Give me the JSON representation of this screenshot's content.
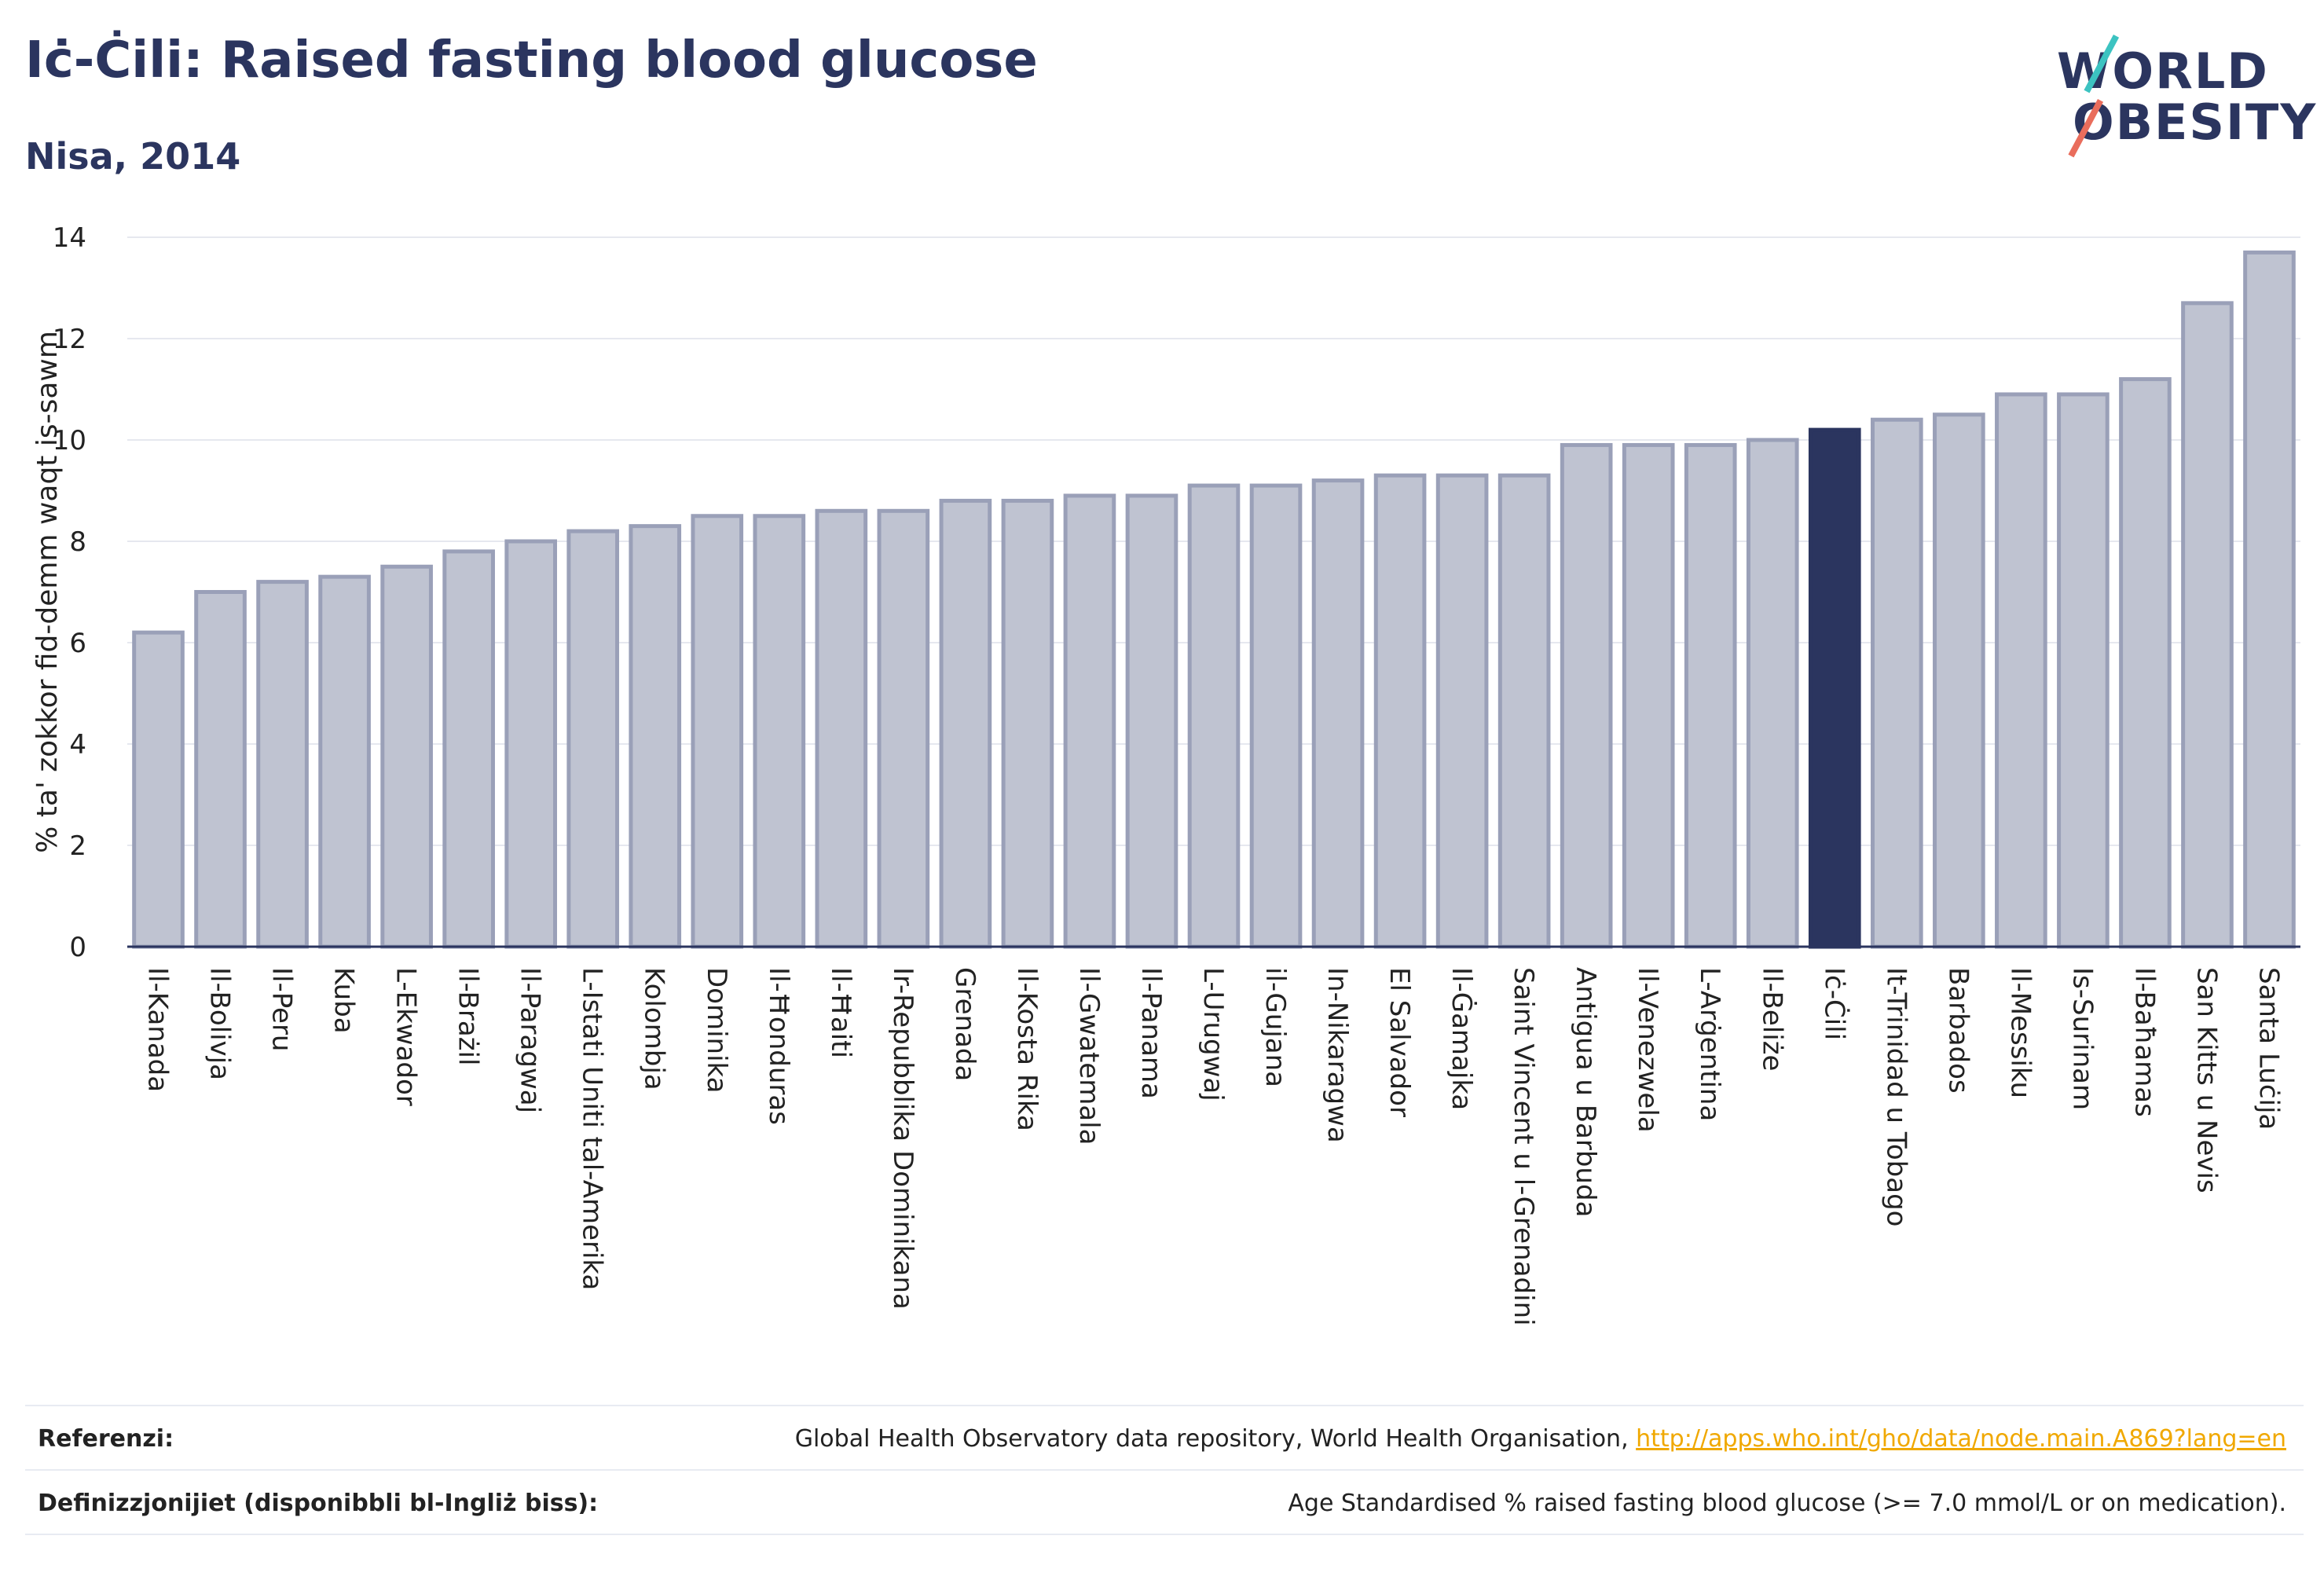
{
  "header": {
    "title": "Iċ-Ċili: Raised fasting blood glucose",
    "subtitle": "Nisa, 2014"
  },
  "logo": {
    "line1": "WORLD",
    "line2": "OBESITY"
  },
  "colors": {
    "bar": "#bfc3d1",
    "bar_edge": "#9aa0b8",
    "highlight": "#2b355f",
    "grid": "#e6e8ef",
    "axis": "#2b355f"
  },
  "chart_data": {
    "type": "bar",
    "title": "Iċ-Ċili: Raised fasting blood glucose",
    "subtitle": "Nisa, 2014",
    "xlabel": "",
    "ylabel": "% ta' zokkor fid-demm waqt is-sawm",
    "ylim": [
      0,
      14
    ],
    "yticks": [
      0,
      2,
      4,
      6,
      8,
      10,
      12,
      14
    ],
    "grid": true,
    "highlight": "Iċ-Ċili",
    "categories": [
      "Il-Kanada",
      "Il-Bolivja",
      "Il-Peru",
      "Kuba",
      "L-Ekwador",
      "Il-Brażil",
      "Il-Paragwaj",
      "L-Istati Uniti tal-Amerika",
      "Kolombja",
      "Dominika",
      "Il-Ħonduras",
      "Il-Ħaiti",
      "Ir-Repubblika Dominikana",
      "Grenada",
      "Il-Kosta Rika",
      "Il-Gwatemala",
      "Il-Panama",
      "L-Urugwaj",
      "il-Gujana",
      "In-Nikaragwa",
      "El Salvador",
      "Il-Ġamajka",
      "Saint Vincent u l-Grenadini",
      "Antigua u Barbuda",
      "Il-Venezwela",
      "L-Arġentina",
      "Il-Beliże",
      "Iċ-Ċili",
      "It-Trinidad u Tobago",
      "Barbados",
      "Il-Messiku",
      "Is-Surinam",
      "Il-Baħamas",
      "San Kitts u Nevis",
      "Santa Luċija"
    ],
    "values": [
      6.2,
      7.0,
      7.2,
      7.3,
      7.5,
      7.8,
      8.0,
      8.2,
      8.3,
      8.5,
      8.5,
      8.6,
      8.6,
      8.8,
      8.8,
      8.9,
      8.9,
      9.1,
      9.1,
      9.2,
      9.3,
      9.3,
      9.3,
      9.9,
      9.9,
      9.9,
      10.0,
      10.2,
      10.4,
      10.5,
      10.9,
      10.9,
      11.2,
      12.7,
      13.7
    ]
  },
  "footer": {
    "ref_label": "Referenzi:",
    "ref_text": "Global Health Observatory data repository, World Health Organisation, ",
    "ref_link": "http://apps.who.int/gho/data/node.main.A869?lang=en",
    "def_label": "Definizzjonijiet (disponibbli bl-Ingliż biss):",
    "def_text": "Age Standardised % raised fasting blood glucose (>= 7.0 mmol/L or on medication)."
  }
}
